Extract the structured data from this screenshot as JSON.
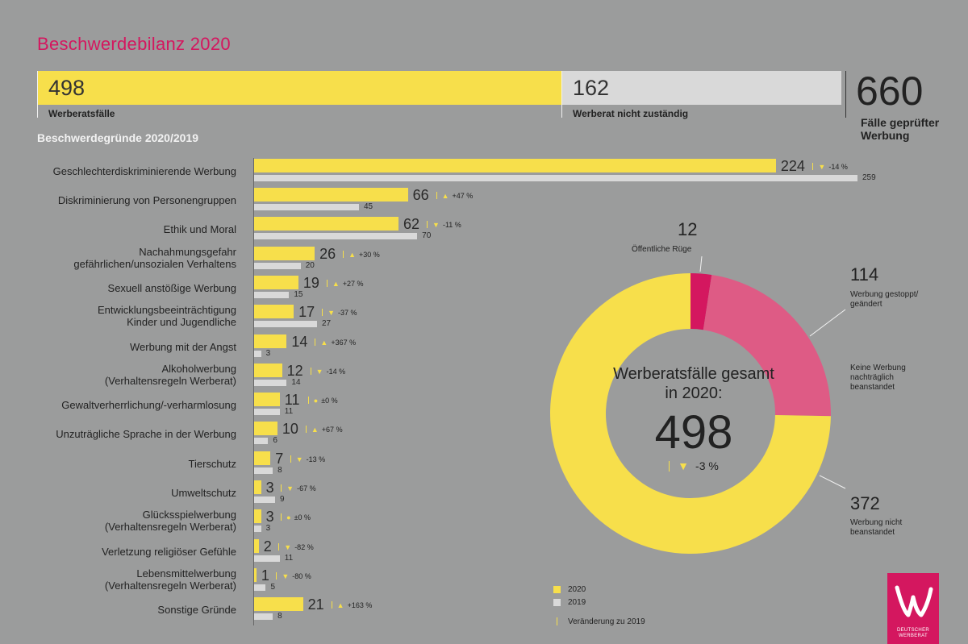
{
  "title": "Beschwerdebilanz 2020",
  "topbar": {
    "werberat_num": "498",
    "werberat_label": "Werberatsfälle",
    "nicht_num": "162",
    "nicht_label": "Werberat nicht zuständig",
    "total_num": "660",
    "total_label": "Fälle geprüfter Werbung",
    "werberat_share": 0.754
  },
  "subtitle": "Beschwerdegründe 2020/2019",
  "chart_data": [
    {
      "type": "bar",
      "categories": [
        "Geschlechterdiskriminierende Werbung",
        "Diskriminierung von Personengruppen",
        "Ethik und Moral",
        "Nachahmungsgefahr\ngefährlichen/unsozialen Verhaltens",
        "Sexuell anstößige Werbung",
        "Entwicklungsbeeinträchtigung\nKinder und Jugendliche",
        "Werbung mit der Angst",
        "Alkoholwerbung\n(Verhaltensregeln Werberat)",
        "Gewaltverherrlichung/-verharmlosung",
        "Unzuträgliche Sprache in der Werbung",
        "Tierschutz",
        "Umweltschutz",
        "Glücksspielwerbung\n(Verhaltensregeln Werberat)",
        "Verletzung religiöser Gefühle",
        "Lebensmittelwerbung\n(Verhaltensregeln Werberat)",
        "Sonstige Gründe"
      ],
      "series": [
        {
          "name": "2020",
          "values": [
            224,
            66,
            62,
            26,
            19,
            17,
            14,
            12,
            11,
            10,
            7,
            3,
            3,
            2,
            1,
            21
          ],
          "color": "#f7df4b"
        },
        {
          "name": "2019",
          "values": [
            259,
            45,
            70,
            20,
            15,
            27,
            3,
            14,
            11,
            6,
            8,
            9,
            3,
            11,
            5,
            8
          ],
          "color": "#d9d9d9"
        }
      ],
      "changes": [
        "-14 %",
        "+47 %",
        "-11 %",
        "+30 %",
        "+27 %",
        "-37 %",
        "+367 %",
        "-14 %",
        "±0 %",
        "+67 %",
        "-13 %",
        "-67 %",
        "±0 %",
        "-82 %",
        "-80 %",
        "+163 %"
      ],
      "change_dirs": [
        "down",
        "up",
        "down",
        "up",
        "up",
        "down",
        "up",
        "down",
        "flat",
        "up",
        "down",
        "down",
        "flat",
        "down",
        "down",
        "up"
      ],
      "xlim": [
        0,
        259
      ]
    },
    {
      "type": "pie",
      "center_label": "Werberatsfälle gesamt in 2020:",
      "center_value": "498",
      "center_change": "-3 %",
      "slices": [
        {
          "label": "Öffentliche Rüge",
          "value": 12,
          "display": "12",
          "color": "#d4175f"
        },
        {
          "label": "Werbung gestoppt/ geändert",
          "value": 114,
          "display": "114",
          "color": "#de5b85"
        },
        {
          "label": "Werbung nicht beanstandet",
          "value": 372,
          "display": "372",
          "color": "#f7df4b"
        }
      ],
      "extra_label": "Keine Werbung nachträglich beanstandet"
    }
  ],
  "legend": {
    "items": [
      {
        "label": "2020",
        "color": "#f7df4b"
      },
      {
        "label": "2019",
        "color": "#d9d9d9"
      }
    ],
    "change_label": "Veränderung zu 2019"
  },
  "logo": {
    "line1": "DEUTSCHER",
    "line2": "WERBERAT"
  }
}
